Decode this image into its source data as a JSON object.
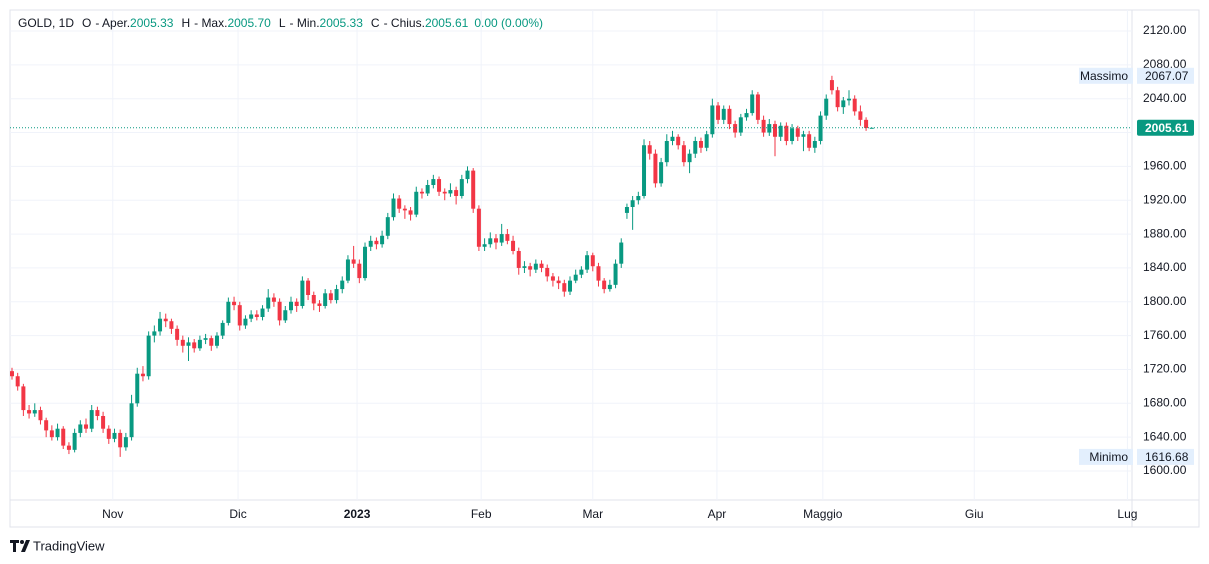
{
  "header": {
    "symbol": "GOLD, 1D",
    "fields": [
      {
        "key": "O",
        "label": "- Aper.",
        "value": "2005.33"
      },
      {
        "key": "H",
        "label": "- Max.",
        "value": "2005.70"
      },
      {
        "key": "L",
        "label": "- Min.",
        "value": "2005.33"
      },
      {
        "key": "C",
        "label": "- Chius.",
        "value": "2005.61"
      }
    ],
    "change": "0.00 (0.00%)"
  },
  "footer": {
    "brand": "TradingView"
  },
  "chart_data": {
    "type": "candlestick",
    "up_color": "#089981",
    "down_color": "#f23645",
    "grid": true,
    "xlim": [
      -0.35,
      196.7
    ],
    "xticks": [
      {
        "value": 17.7,
        "label": "Nov"
      },
      {
        "value": 39.7,
        "label": "Dic"
      },
      {
        "value": 60.6,
        "label": "2023"
      },
      {
        "value": 82.4,
        "label": "Feb"
      },
      {
        "value": 102.0,
        "label": "Mar"
      },
      {
        "value": 123.8,
        "label": "Apr"
      },
      {
        "value": 142.4,
        "label": "Maggio"
      },
      {
        "value": 169.0,
        "label": "Giu"
      },
      {
        "value": 195.9,
        "label": "Lug"
      }
    ],
    "ylim": [
      1565.73,
      2144.82
    ],
    "yticks": [
      {
        "value": 1600,
        "label": "1600.00"
      },
      {
        "value": 1640,
        "label": "1640.00"
      },
      {
        "value": 1680,
        "label": "1680.00"
      },
      {
        "value": 1720,
        "label": "1720.00"
      },
      {
        "value": 1760,
        "label": "1760.00"
      },
      {
        "value": 1800,
        "label": "1800.00"
      },
      {
        "value": 1840,
        "label": "1840.00"
      },
      {
        "value": 1880,
        "label": "1880.00"
      },
      {
        "value": 1920,
        "label": "1920.00"
      },
      {
        "value": 1960,
        "label": "1960.00"
      },
      {
        "value": 2000,
        "label": "2000.00"
      },
      {
        "value": 2040,
        "label": "2040.00"
      },
      {
        "value": 2080,
        "label": "2080.00"
      },
      {
        "value": 2120,
        "label": "2120.00"
      }
    ],
    "annotations": {
      "high": {
        "label": "Massimo",
        "value": 2067.07
      },
      "low": {
        "label": "Minimo",
        "value": 1616.68
      },
      "last": {
        "value": 2005.61
      }
    },
    "candles": [
      [
        1718,
        1722,
        1708,
        1712
      ],
      [
        1712,
        1716,
        1695,
        1700
      ],
      [
        1700,
        1703,
        1665,
        1672
      ],
      [
        1672,
        1678,
        1662,
        1668
      ],
      [
        1668,
        1680,
        1664,
        1672
      ],
      [
        1672,
        1676,
        1655,
        1660
      ],
      [
        1660,
        1663,
        1640,
        1648
      ],
      [
        1648,
        1654,
        1636,
        1640
      ],
      [
        1640,
        1656,
        1636,
        1650
      ],
      [
        1650,
        1653,
        1626,
        1630
      ],
      [
        1630,
        1634,
        1620,
        1625
      ],
      [
        1625,
        1650,
        1622,
        1645
      ],
      [
        1645,
        1660,
        1640,
        1655
      ],
      [
        1655,
        1662,
        1645,
        1650
      ],
      [
        1650,
        1678,
        1646,
        1672
      ],
      [
        1672,
        1676,
        1660,
        1665
      ],
      [
        1665,
        1670,
        1645,
        1650
      ],
      [
        1650,
        1654,
        1632,
        1638
      ],
      [
        1638,
        1650,
        1634,
        1645
      ],
      [
        1645,
        1649,
        1616.68,
        1628
      ],
      [
        1628,
        1645,
        1624,
        1640
      ],
      [
        1640,
        1690,
        1636,
        1680
      ],
      [
        1680,
        1722,
        1676,
        1715
      ],
      [
        1715,
        1724,
        1706,
        1712
      ],
      [
        1712,
        1765,
        1708,
        1760
      ],
      [
        1760,
        1772,
        1752,
        1765
      ],
      [
        1765,
        1788,
        1760,
        1780
      ],
      [
        1780,
        1786,
        1770,
        1777
      ],
      [
        1777,
        1780,
        1762,
        1768
      ],
      [
        1768,
        1772,
        1748,
        1755
      ],
      [
        1755,
        1760,
        1740,
        1748
      ],
      [
        1748,
        1758,
        1730,
        1752
      ],
      [
        1752,
        1756,
        1740,
        1745
      ],
      [
        1745,
        1760,
        1742,
        1755
      ],
      [
        1755,
        1762,
        1750,
        1757
      ],
      [
        1757,
        1760,
        1742,
        1748
      ],
      [
        1748,
        1764,
        1745,
        1760
      ],
      [
        1760,
        1778,
        1756,
        1775
      ],
      [
        1775,
        1805,
        1772,
        1800
      ],
      [
        1800,
        1806,
        1790,
        1796
      ],
      [
        1796,
        1800,
        1766,
        1772
      ],
      [
        1772,
        1784,
        1768,
        1780
      ],
      [
        1780,
        1790,
        1776,
        1785
      ],
      [
        1785,
        1790,
        1778,
        1782
      ],
      [
        1782,
        1796,
        1778,
        1792
      ],
      [
        1792,
        1815,
        1788,
        1805
      ],
      [
        1805,
        1810,
        1794,
        1800
      ],
      [
        1800,
        1804,
        1772,
        1778
      ],
      [
        1778,
        1795,
        1775,
        1790
      ],
      [
        1790,
        1806,
        1786,
        1800
      ],
      [
        1800,
        1804,
        1788,
        1795
      ],
      [
        1795,
        1830,
        1792,
        1825
      ],
      [
        1825,
        1828,
        1802,
        1808
      ],
      [
        1808,
        1812,
        1790,
        1798
      ],
      [
        1798,
        1802,
        1788,
        1795
      ],
      [
        1795,
        1815,
        1792,
        1810
      ],
      [
        1810,
        1814,
        1798,
        1802
      ],
      [
        1802,
        1820,
        1798,
        1815
      ],
      [
        1815,
        1830,
        1810,
        1825
      ],
      [
        1825,
        1855,
        1822,
        1850
      ],
      [
        1850,
        1866,
        1840,
        1845
      ],
      [
        1845,
        1850,
        1822,
        1828
      ],
      [
        1828,
        1870,
        1825,
        1865
      ],
      [
        1865,
        1878,
        1860,
        1872
      ],
      [
        1872,
        1876,
        1862,
        1868
      ],
      [
        1868,
        1884,
        1864,
        1878
      ],
      [
        1878,
        1905,
        1874,
        1900
      ],
      [
        1900,
        1928,
        1896,
        1922
      ],
      [
        1922,
        1926,
        1905,
        1910
      ],
      [
        1910,
        1914,
        1898,
        1908
      ],
      [
        1908,
        1912,
        1896,
        1903
      ],
      [
        1903,
        1936,
        1900,
        1930
      ],
      [
        1930,
        1934,
        1922,
        1928
      ],
      [
        1928,
        1944,
        1925,
        1938
      ],
      [
        1938,
        1950,
        1934,
        1945
      ],
      [
        1945,
        1948,
        1925,
        1930
      ],
      [
        1930,
        1934,
        1920,
        1928
      ],
      [
        1928,
        1940,
        1924,
        1932
      ],
      [
        1932,
        1936,
        1915,
        1925
      ],
      [
        1925,
        1950,
        1922,
        1945
      ],
      [
        1945,
        1960,
        1940,
        1955
      ],
      [
        1955,
        1958,
        1905,
        1910
      ],
      [
        1910,
        1914,
        1860,
        1865
      ],
      [
        1865,
        1875,
        1860,
        1868
      ],
      [
        1868,
        1882,
        1864,
        1875
      ],
      [
        1875,
        1880,
        1862,
        1870
      ],
      [
        1870,
        1892,
        1866,
        1880
      ],
      [
        1880,
        1886,
        1868,
        1872
      ],
      [
        1872,
        1878,
        1856,
        1860
      ],
      [
        1860,
        1864,
        1832,
        1840
      ],
      [
        1840,
        1848,
        1834,
        1842
      ],
      [
        1842,
        1846,
        1830,
        1838
      ],
      [
        1838,
        1850,
        1834,
        1845
      ],
      [
        1845,
        1849,
        1835,
        1840
      ],
      [
        1840,
        1844,
        1824,
        1830
      ],
      [
        1830,
        1834,
        1818,
        1825
      ],
      [
        1825,
        1830,
        1815,
        1822
      ],
      [
        1822,
        1826,
        1806,
        1812
      ],
      [
        1812,
        1830,
        1808,
        1825
      ],
      [
        1825,
        1838,
        1822,
        1832
      ],
      [
        1832,
        1842,
        1828,
        1838
      ],
      [
        1838,
        1860,
        1834,
        1855
      ],
      [
        1855,
        1858,
        1836,
        1842
      ],
      [
        1842,
        1846,
        1818,
        1825
      ],
      [
        1825,
        1828,
        1810,
        1815
      ],
      [
        1815,
        1826,
        1812,
        1820
      ],
      [
        1820,
        1850,
        1816,
        1845
      ],
      [
        1845,
        1875,
        1840,
        1870
      ],
      [
        1905,
        1916,
        1898,
        1912
      ],
      [
        1912,
        1925,
        1885,
        1920
      ],
      [
        1920,
        1930,
        1915,
        1925
      ],
      [
        1925,
        1992,
        1922,
        1985
      ],
      [
        1985,
        1990,
        1968,
        1975
      ],
      [
        1975,
        1980,
        1935,
        1940
      ],
      [
        1940,
        1970,
        1936,
        1965
      ],
      [
        1965,
        1998,
        1960,
        1990
      ],
      [
        1990,
        2002,
        1985,
        1995
      ],
      [
        1995,
        1998,
        1980,
        1985
      ],
      [
        1985,
        1990,
        1960,
        1965
      ],
      [
        1965,
        1980,
        1952,
        1975
      ],
      [
        1975,
        1995,
        1970,
        1990
      ],
      [
        1990,
        1994,
        1976,
        1982
      ],
      [
        1982,
        2002,
        1978,
        1998
      ],
      [
        1998,
        2040,
        1994,
        2032
      ],
      [
        2032,
        2036,
        2010,
        2015
      ],
      [
        2015,
        2032,
        2010,
        2028
      ],
      [
        2028,
        2032,
        2004,
        2010
      ],
      [
        2010,
        2014,
        1994,
        2000
      ],
      [
        2000,
        2022,
        1996,
        2018
      ],
      [
        2018,
        2028,
        2014,
        2023
      ],
      [
        2023,
        2050,
        2020,
        2045
      ],
      [
        2045,
        2048,
        2010,
        2015
      ],
      [
        2015,
        2020,
        1995,
        2000
      ],
      [
        2000,
        2016,
        1996,
        2010
      ],
      [
        2010,
        2014,
        1972,
        1995
      ],
      [
        1995,
        2012,
        1990,
        2008
      ],
      [
        2008,
        2012,
        1985,
        1990
      ],
      [
        1990,
        2010,
        1986,
        2005
      ],
      [
        2005,
        2008,
        1990,
        1995
      ],
      [
        1995,
        2002,
        1978,
        1998
      ],
      [
        1998,
        2002,
        1978,
        1982
      ],
      [
        1982,
        1995,
        1976,
        1990
      ],
      [
        1990,
        2025,
        1986,
        2020
      ],
      [
        2020,
        2045,
        2015,
        2040
      ],
      [
        2062,
        2067.07,
        2045,
        2050
      ],
      [
        2050,
        2054,
        2025,
        2030
      ],
      [
        2030,
        2042,
        2022,
        2038
      ],
      [
        2038,
        2050,
        2032,
        2040
      ],
      [
        2040,
        2044,
        2020,
        2025
      ],
      [
        2025,
        2032,
        2008,
        2015
      ],
      [
        2015,
        2018,
        2002,
        2005.33
      ],
      [
        2005.33,
        2005.7,
        2005.33,
        2005.61
      ]
    ]
  }
}
